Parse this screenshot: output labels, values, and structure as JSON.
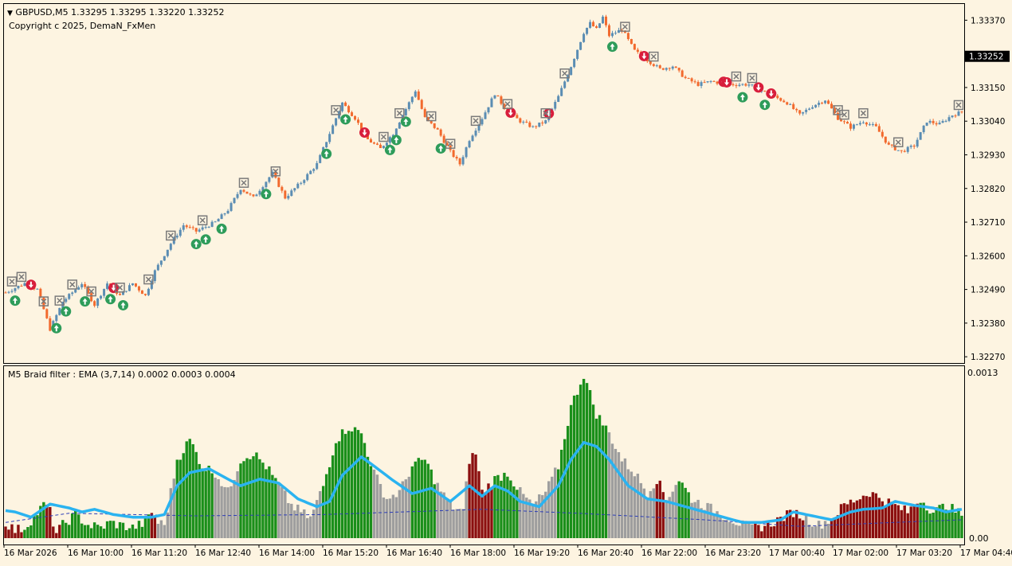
{
  "header": {
    "symbol_line": "GBPUSD,M5  1.33295 1.33295 1.33220 1.33252",
    "copyright": "Copyright c 2025, DemaN_FxMen",
    "menu_glyph": "▼"
  },
  "subwindow": {
    "title": "M5 Braid filter : EMA  (3,7,14) 0.0002 0.0003 0.0004",
    "top_label": "0.0013",
    "bottom_label": "0.00"
  },
  "colors": {
    "background": "#fdf4e1",
    "bull_candle": "#5b8db3",
    "bear_candle": "#f26a2e",
    "histogram_green": "#1a8f1a",
    "histogram_red": "#8b0f0f",
    "histogram_gray": "#9e9e9e",
    "signal_line": "#2ab3f0",
    "dashed_line": "#2c3db8",
    "up_arrow": "#2e9c5a",
    "down_arrow": "#d81e3c",
    "cross_marker": "#7a7a7a",
    "current_price_bg": "#000000"
  },
  "chart_data": [
    {
      "type": "candlestick",
      "symbol": "GBPUSD",
      "timeframe": "M5",
      "current_price": "1.33252",
      "y_ticks": [
        "1.33370",
        "1.33150",
        "1.33040",
        "1.32930",
        "1.32820",
        "1.32710",
        "1.32600",
        "1.32490",
        "1.32380",
        "1.32270"
      ],
      "x_ticks": [
        "16 Mar 2026",
        "16 Mar 10:00",
        "16 Mar 11:20",
        "16 Mar 12:40",
        "16 Mar 14:00",
        "16 Mar 15:20",
        "16 Mar 16:40",
        "16 Mar 18:00",
        "16 Mar 19:20",
        "16 Mar 20:40",
        "16 Mar 22:00",
        "16 Mar 23:20",
        "17 Mar 00:40",
        "17 Mar 02:00",
        "17 Mar 03:20",
        "17 Mar 04:40"
      ],
      "ylim": [
        1.3226,
        1.3341
      ],
      "close_path": [
        [
          0,
          1.3248
        ],
        [
          6,
          1.3251
        ],
        [
          10,
          1.3249
        ],
        [
          14,
          1.3236
        ],
        [
          18,
          1.3245
        ],
        [
          24,
          1.3251
        ],
        [
          28,
          1.3244
        ],
        [
          32,
          1.3251
        ],
        [
          36,
          1.3247
        ],
        [
          40,
          1.3251
        ],
        [
          44,
          1.3247
        ],
        [
          47,
          1.3255
        ],
        [
          52,
          1.3264
        ],
        [
          56,
          1.327
        ],
        [
          60,
          1.3268
        ],
        [
          66,
          1.3271
        ],
        [
          70,
          1.3275
        ],
        [
          74,
          1.3282
        ],
        [
          78,
          1.3279
        ],
        [
          84,
          1.3287
        ],
        [
          88,
          1.3279
        ],
        [
          93,
          1.3284
        ],
        [
          98,
          1.329
        ],
        [
          102,
          1.33
        ],
        [
          106,
          1.331
        ],
        [
          110,
          1.3305
        ],
        [
          114,
          1.3298
        ],
        [
          118,
          1.3295
        ],
        [
          122,
          1.33
        ],
        [
          126,
          1.3308
        ],
        [
          129,
          1.3314
        ],
        [
          132,
          1.3305
        ],
        [
          136,
          1.3301
        ],
        [
          140,
          1.3294
        ],
        [
          143,
          1.329
        ],
        [
          146,
          1.3298
        ],
        [
          150,
          1.3305
        ],
        [
          154,
          1.3313
        ],
        [
          158,
          1.3307
        ],
        [
          162,
          1.3304
        ],
        [
          166,
          1.3302
        ],
        [
          170,
          1.3304
        ],
        [
          174,
          1.3312
        ],
        [
          178,
          1.3322
        ],
        [
          182,
          1.3333
        ],
        [
          184,
          1.3336
        ],
        [
          186,
          1.3334
        ],
        [
          188,
          1.3338
        ],
        [
          190,
          1.3332
        ],
        [
          194,
          1.3334
        ],
        [
          198,
          1.3327
        ],
        [
          202,
          1.3324
        ],
        [
          206,
          1.3321
        ],
        [
          210,
          1.3322
        ],
        [
          214,
          1.3318
        ],
        [
          218,
          1.3316
        ],
        [
          222,
          1.3317
        ],
        [
          228,
          1.3316
        ],
        [
          234,
          1.3316
        ],
        [
          238,
          1.3314
        ],
        [
          242,
          1.3312
        ],
        [
          246,
          1.331
        ],
        [
          250,
          1.3306
        ],
        [
          254,
          1.3309
        ],
        [
          258,
          1.3311
        ],
        [
          262,
          1.3305
        ],
        [
          266,
          1.3302
        ],
        [
          270,
          1.3304
        ],
        [
          274,
          1.3302
        ],
        [
          278,
          1.3296
        ],
        [
          282,
          1.3294
        ],
        [
          286,
          1.3296
        ],
        [
          290,
          1.3304
        ],
        [
          294,
          1.3303
        ],
        [
          298,
          1.3306
        ],
        [
          301,
          1.3307
        ]
      ],
      "markers_up": [
        3,
        16,
        19,
        25,
        33,
        37,
        60,
        63,
        68,
        82,
        101,
        107,
        121,
        123,
        126,
        137,
        191,
        232,
        239
      ],
      "markers_down": [
        8,
        34,
        113,
        159,
        171,
        201,
        226,
        227,
        237,
        241
      ],
      "markers_cross": [
        2,
        5,
        12,
        17,
        21,
        27,
        36,
        45,
        52,
        62,
        75,
        85,
        104,
        119,
        124,
        134,
        140,
        148,
        158,
        170,
        176,
        195,
        204,
        230,
        235,
        262,
        264,
        270,
        281,
        300
      ]
    },
    {
      "type": "histogram",
      "name": "M5 Braid filter : EMA",
      "parameters": "(3,7,14) 0.0002 0.0003 0.0004",
      "ylim": [
        0,
        0.0013
      ],
      "bar_levels": [
        [
          0,
          0.00012,
          "r"
        ],
        [
          3,
          6e-05,
          "r"
        ],
        [
          6,
          8e-05,
          "g"
        ],
        [
          12,
          0.00025,
          "g"
        ],
        [
          13,
          0.00025,
          "r"
        ],
        [
          14,
          0.0002,
          "r"
        ],
        [
          16,
          4e-05,
          "r"
        ],
        [
          18,
          0.0001,
          "g"
        ],
        [
          22,
          0.00018,
          "g"
        ],
        [
          26,
          0.0001,
          "g"
        ],
        [
          30,
          8e-05,
          "g"
        ],
        [
          33,
          0.00012,
          "g"
        ],
        [
          36,
          0.0001,
          "g"
        ],
        [
          40,
          8e-05,
          "g"
        ],
        [
          44,
          0.00012,
          "g"
        ],
        [
          46,
          0.0002,
          "r"
        ],
        [
          48,
          0.00012,
          "x"
        ],
        [
          50,
          0.0001,
          "x"
        ],
        [
          54,
          0.0006,
          "g"
        ],
        [
          58,
          0.00075,
          "g"
        ],
        [
          62,
          0.00055,
          "g"
        ],
        [
          66,
          0.0005,
          "x"
        ],
        [
          70,
          0.00035,
          "x"
        ],
        [
          74,
          0.0006,
          "g"
        ],
        [
          78,
          0.00065,
          "g"
        ],
        [
          82,
          0.00055,
          "g"
        ],
        [
          86,
          0.0004,
          "x"
        ],
        [
          90,
          0.00025,
          "x"
        ],
        [
          96,
          0.00015,
          "x"
        ],
        [
          100,
          0.0004,
          "g"
        ],
        [
          104,
          0.00075,
          "g"
        ],
        [
          108,
          0.00085,
          "g"
        ],
        [
          112,
          0.0008,
          "g"
        ],
        [
          116,
          0.0005,
          "x"
        ],
        [
          120,
          0.0003,
          "x"
        ],
        [
          124,
          0.00035,
          "x"
        ],
        [
          128,
          0.00055,
          "g"
        ],
        [
          132,
          0.0006,
          "g"
        ],
        [
          136,
          0.0004,
          "x"
        ],
        [
          140,
          0.00025,
          "x"
        ],
        [
          144,
          0.0002,
          "x"
        ],
        [
          146,
          0.0006,
          "r"
        ],
        [
          148,
          0.00065,
          "r"
        ],
        [
          150,
          0.00035,
          "r"
        ],
        [
          154,
          0.00045,
          "g"
        ],
        [
          158,
          0.0005,
          "g"
        ],
        [
          162,
          0.00035,
          "x"
        ],
        [
          166,
          0.00025,
          "x"
        ],
        [
          170,
          0.00035,
          "x"
        ],
        [
          174,
          0.00055,
          "g"
        ],
        [
          178,
          0.001,
          "g"
        ],
        [
          182,
          0.00125,
          "g"
        ],
        [
          186,
          0.00095,
          "g"
        ],
        [
          190,
          0.0008,
          "x"
        ],
        [
          194,
          0.0006,
          "x"
        ],
        [
          198,
          0.0005,
          "x"
        ],
        [
          202,
          0.00035,
          "x"
        ],
        [
          205,
          0.00045,
          "r"
        ],
        [
          208,
          0.0003,
          "x"
        ],
        [
          212,
          0.00045,
          "g"
        ],
        [
          216,
          0.0003,
          "x"
        ],
        [
          220,
          0.00025,
          "x"
        ],
        [
          224,
          0.0002,
          "x"
        ],
        [
          228,
          0.00015,
          "x"
        ],
        [
          232,
          0.0001,
          "x"
        ],
        [
          236,
          8e-05,
          "r"
        ],
        [
          240,
          0.0001,
          "r"
        ],
        [
          244,
          0.00015,
          "r"
        ],
        [
          248,
          0.0002,
          "r"
        ],
        [
          252,
          0.00015,
          "x"
        ],
        [
          256,
          0.0001,
          "x"
        ],
        [
          260,
          0.00015,
          "r"
        ],
        [
          264,
          0.00025,
          "r"
        ],
        [
          268,
          0.0003,
          "r"
        ],
        [
          272,
          0.00035,
          "r"
        ],
        [
          276,
          0.0003,
          "r"
        ],
        [
          280,
          0.00025,
          "r"
        ],
        [
          284,
          0.0002,
          "r"
        ],
        [
          288,
          0.0003,
          "g"
        ],
        [
          292,
          0.0002,
          "g"
        ],
        [
          296,
          0.00025,
          "g"
        ],
        [
          301,
          0.00018,
          "g"
        ]
      ],
      "signal_line": [
        [
          0,
          0.00021
        ],
        [
          3,
          0.0002
        ],
        [
          8,
          0.00016
        ],
        [
          14,
          0.00026
        ],
        [
          20,
          0.00023
        ],
        [
          24,
          0.0002
        ],
        [
          28,
          0.00022
        ],
        [
          34,
          0.00018
        ],
        [
          40,
          0.00016
        ],
        [
          46,
          0.00016
        ],
        [
          50,
          0.00018
        ],
        [
          54,
          0.0004
        ],
        [
          58,
          0.0005
        ],
        [
          64,
          0.00053
        ],
        [
          70,
          0.00045
        ],
        [
          74,
          0.0004
        ],
        [
          80,
          0.00045
        ],
        [
          86,
          0.00042
        ],
        [
          92,
          0.0003
        ],
        [
          98,
          0.00024
        ],
        [
          102,
          0.00028
        ],
        [
          106,
          0.00048
        ],
        [
          112,
          0.00062
        ],
        [
          116,
          0.00055
        ],
        [
          122,
          0.00044
        ],
        [
          128,
          0.00034
        ],
        [
          134,
          0.00038
        ],
        [
          140,
          0.00028
        ],
        [
          146,
          0.0004
        ],
        [
          150,
          0.00032
        ],
        [
          154,
          0.0004
        ],
        [
          158,
          0.00036
        ],
        [
          162,
          0.00028
        ],
        [
          168,
          0.00024
        ],
        [
          174,
          0.0004
        ],
        [
          178,
          0.0006
        ],
        [
          182,
          0.00073
        ],
        [
          186,
          0.0007
        ],
        [
          190,
          0.0006
        ],
        [
          196,
          0.0004
        ],
        [
          202,
          0.0003
        ],
        [
          208,
          0.00028
        ],
        [
          214,
          0.00024
        ],
        [
          220,
          0.0002
        ],
        [
          226,
          0.00016
        ],
        [
          232,
          0.00012
        ],
        [
          238,
          0.00012
        ],
        [
          244,
          0.00014
        ],
        [
          248,
          0.0002
        ],
        [
          254,
          0.00017
        ],
        [
          260,
          0.00014
        ],
        [
          266,
          0.0002
        ],
        [
          270,
          0.00022
        ],
        [
          276,
          0.00023
        ],
        [
          280,
          0.00028
        ],
        [
          286,
          0.00025
        ],
        [
          292,
          0.00023
        ],
        [
          296,
          0.0002
        ],
        [
          301,
          0.00022
        ]
      ],
      "dashed_line": [
        [
          0,
          0.00012
        ],
        [
          20,
          0.00019
        ],
        [
          60,
          0.00017
        ],
        [
          100,
          0.00018
        ],
        [
          150,
          0.00022
        ],
        [
          180,
          0.00019
        ],
        [
          220,
          0.00014
        ],
        [
          250,
          9e-05
        ],
        [
          280,
          0.00012
        ],
        [
          301,
          0.00014
        ]
      ]
    }
  ]
}
